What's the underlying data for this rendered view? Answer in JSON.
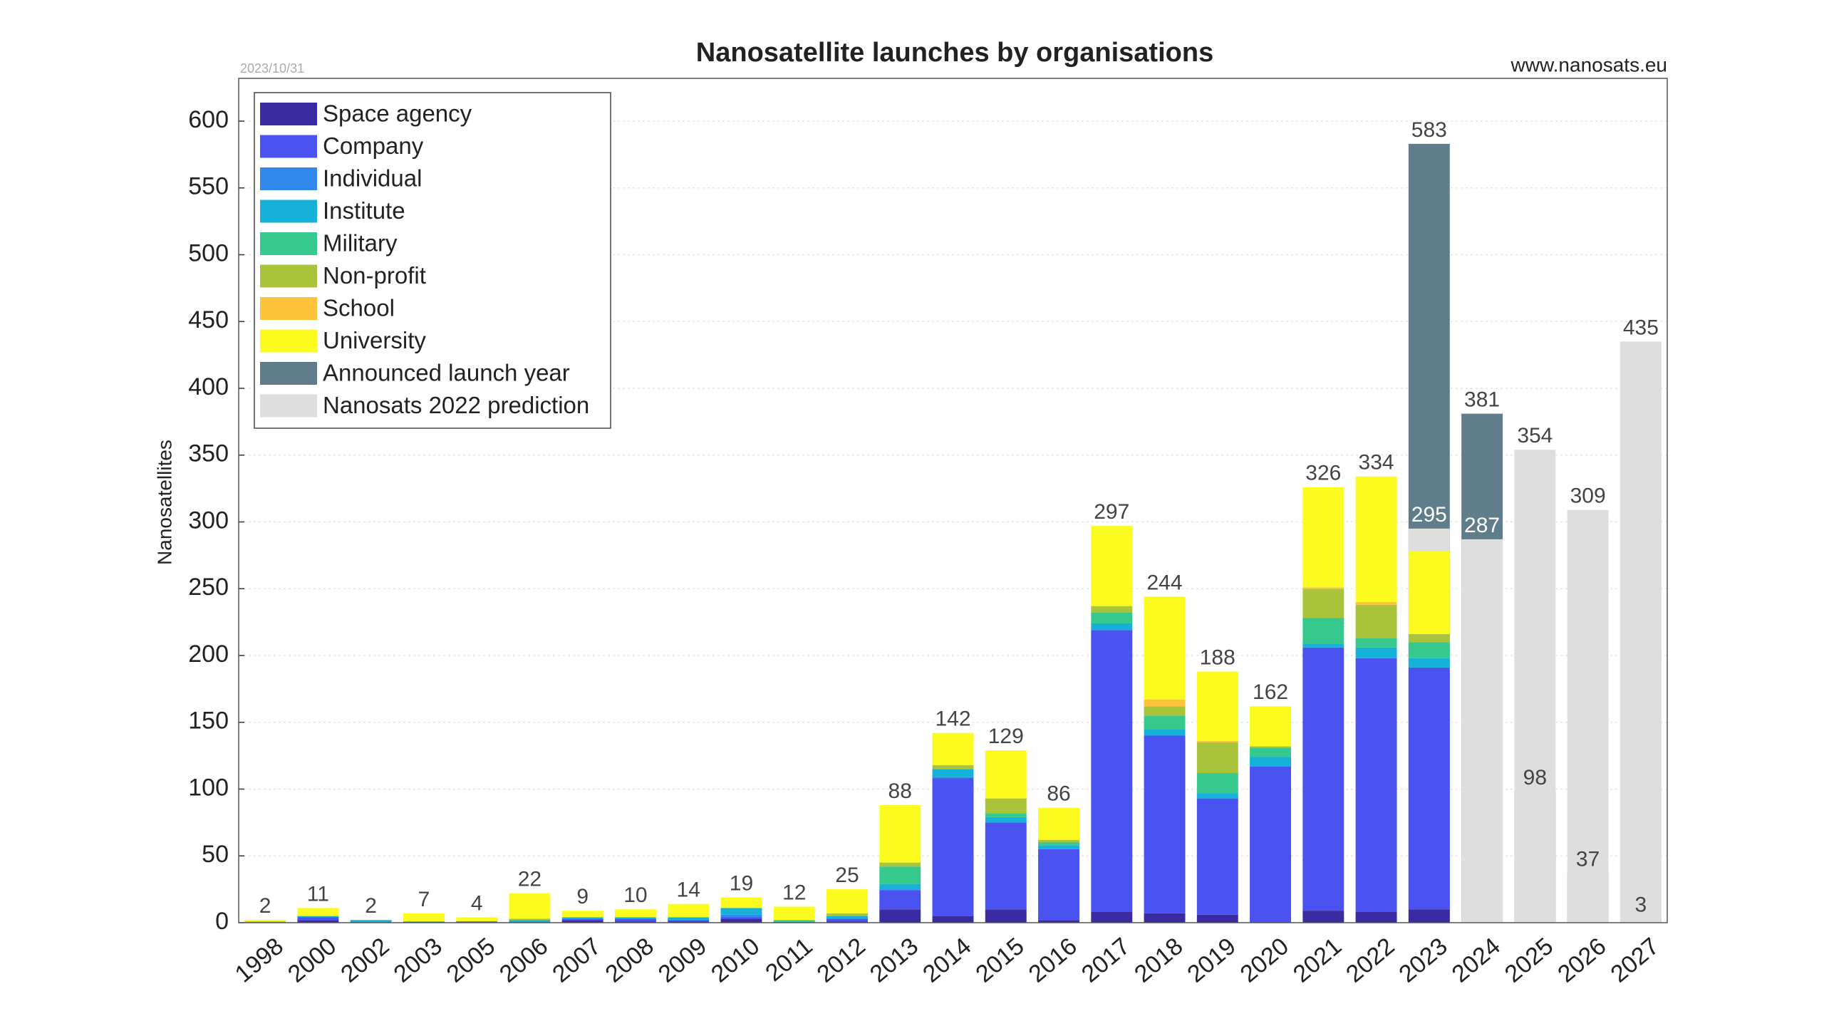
{
  "chart_data": {
    "type": "bar",
    "title": "Nanosatellite launches by organisations",
    "date": "2023/10/31",
    "source": "www.nanosats.eu",
    "ylabel": "Nanosatellites",
    "legend": "upper left",
    "grid": true,
    "ylim": [
      0,
      632
    ],
    "yticks": [
      0,
      50,
      100,
      150,
      200,
      250,
      300,
      350,
      400,
      450,
      500,
      550,
      600
    ],
    "categories": [
      "1998",
      "2000",
      "2002",
      "2003",
      "2005",
      "2006",
      "2007",
      "2008",
      "2009",
      "2010",
      "2011",
      "2012",
      "2013",
      "2014",
      "2015",
      "2016",
      "2017",
      "2018",
      "2019",
      "2020",
      "2021",
      "2022",
      "2023",
      "2024",
      "2025",
      "2026",
      "2027"
    ],
    "series": [
      {
        "name": "Space agency",
        "color": "#3b2ba3",
        "values": [
          0,
          2,
          0,
          0,
          0,
          0,
          2,
          1,
          1,
          3,
          0,
          1,
          10,
          5,
          10,
          2,
          8,
          7,
          6,
          0,
          9,
          8,
          10,
          null,
          null,
          null,
          null
        ]
      },
      {
        "name": "Company",
        "color": "#4a52f0",
        "values": [
          0,
          2,
          0,
          0,
          1,
          0,
          1,
          2,
          1,
          1,
          0,
          2,
          14,
          103,
          65,
          53,
          211,
          133,
          87,
          117,
          197,
          190,
          181,
          null,
          null,
          null,
          null
        ]
      },
      {
        "name": "Individual",
        "color": "#2f88ea",
        "values": [
          0,
          0,
          0,
          0,
          0,
          0,
          0,
          0,
          0,
          2,
          0,
          0,
          1,
          1,
          0,
          0,
          0,
          0,
          0,
          0,
          0,
          0,
          0,
          null,
          null,
          null,
          null
        ]
      },
      {
        "name": "Institute",
        "color": "#16b1d9",
        "values": [
          0,
          1,
          2,
          1,
          0,
          2,
          1,
          1,
          2,
          5,
          1,
          2,
          4,
          6,
          4,
          3,
          5,
          5,
          4,
          7,
          3,
          8,
          7,
          null,
          null,
          null,
          null
        ]
      },
      {
        "name": "Military",
        "color": "#36c98d",
        "values": [
          0,
          0,
          0,
          0,
          0,
          0,
          0,
          0,
          0,
          0,
          1,
          0,
          13,
          0,
          3,
          2,
          8,
          10,
          15,
          7,
          19,
          7,
          12,
          null,
          null,
          null,
          null
        ]
      },
      {
        "name": "Non-profit",
        "color": "#a9c43b",
        "values": [
          1,
          0,
          0,
          0,
          0,
          1,
          0,
          0,
          0,
          0,
          0,
          2,
          3,
          3,
          11,
          2,
          5,
          7,
          23,
          1,
          22,
          25,
          6,
          null,
          null,
          null,
          null
        ]
      },
      {
        "name": "School",
        "color": "#ffc33b",
        "values": [
          0,
          0,
          0,
          0,
          0,
          0,
          0,
          0,
          0,
          0,
          0,
          0,
          0,
          0,
          0,
          0,
          0,
          5,
          1,
          0,
          1,
          2,
          0,
          null,
          null,
          null,
          null
        ]
      },
      {
        "name": "University",
        "color": "#fbfb1f",
        "values": [
          1,
          6,
          0,
          6,
          3,
          19,
          5,
          6,
          10,
          8,
          10,
          18,
          43,
          24,
          36,
          24,
          60,
          77,
          52,
          30,
          75,
          94,
          62,
          null,
          null,
          null,
          null
        ]
      },
      {
        "name": "Announced launch year",
        "color": "#607d8b",
        "values": [
          null,
          null,
          null,
          null,
          null,
          null,
          null,
          null,
          null,
          null,
          null,
          null,
          null,
          null,
          null,
          null,
          null,
          null,
          null,
          null,
          null,
          null,
          583,
          381,
          98,
          37,
          3
        ]
      },
      {
        "name": "Nanosats 2022 prediction",
        "color": "#dedede",
        "values": [
          null,
          null,
          null,
          null,
          null,
          null,
          null,
          null,
          null,
          null,
          null,
          null,
          null,
          null,
          null,
          null,
          null,
          null,
          null,
          null,
          null,
          null,
          295,
          287,
          354,
          309,
          435
        ]
      }
    ],
    "totals": [
      2,
      11,
      2,
      7,
      4,
      22,
      9,
      10,
      14,
      19,
      12,
      25,
      88,
      142,
      129,
      86,
      297,
      244,
      188,
      162,
      326,
      334,
      null,
      null,
      null,
      null,
      null
    ]
  }
}
